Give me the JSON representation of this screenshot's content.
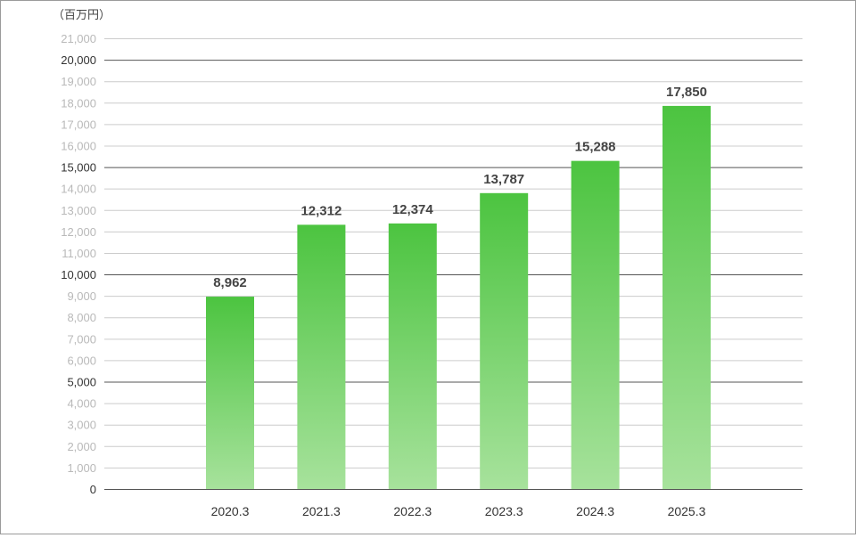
{
  "chart_data": {
    "type": "bar",
    "unit_label": "（百万円）",
    "categories": [
      "2020.3",
      "2021.3",
      "2022.3",
      "2023.3",
      "2024.3",
      "2025.3"
    ],
    "values": [
      8962,
      12312,
      12374,
      13787,
      15288,
      17850
    ],
    "data_labels": [
      "8,962",
      "12,312",
      "12,374",
      "13,787",
      "15,288",
      "17,850"
    ],
    "ylim": [
      0,
      21000
    ],
    "ytick_step": 1000,
    "ytick_major_every": 5000,
    "grid": true,
    "legend": "none",
    "colors": {
      "bar_top": "#4cc440",
      "bar_bottom": "#a7e29c",
      "grid_minor": "#cccccc",
      "grid_major": "#555555",
      "tick_minor": "#b9b9b9",
      "tick_major": "#333333"
    }
  }
}
